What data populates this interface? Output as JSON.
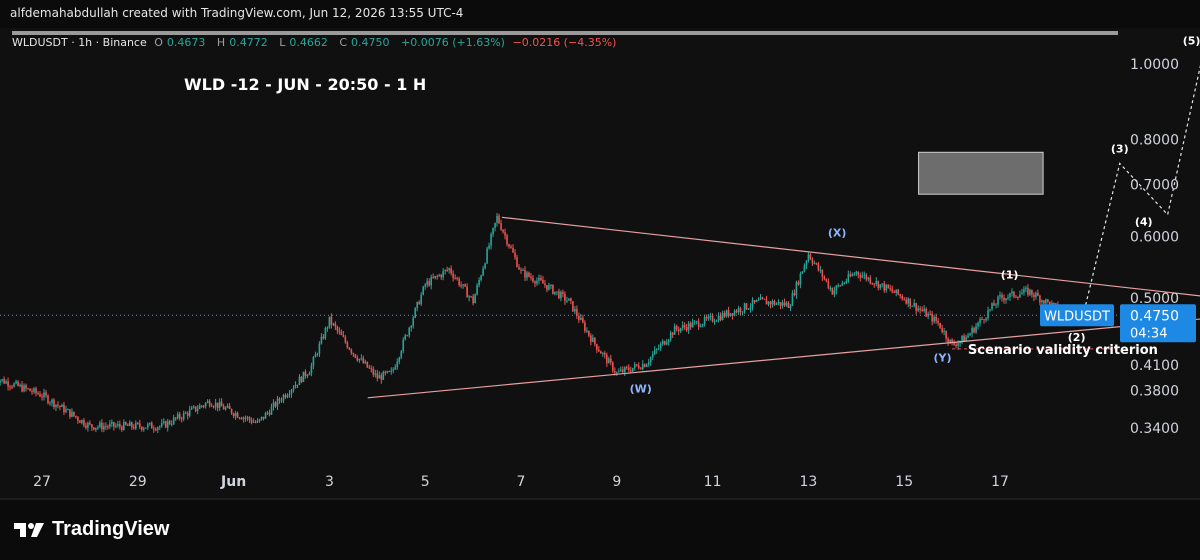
{
  "credit": "alfdemahabdullah created with TradingView.com, Jun 12, 2026 13:55 UTC-4",
  "legend": {
    "symbol": "WLDUSDT · 1h · Binance",
    "o_label": "O",
    "o_value": "0.4673",
    "h_label": "H",
    "h_value": "0.4772",
    "l_label": "L",
    "l_value": "0.4662",
    "c_label": "C",
    "c_value": "0.4750",
    "change": "+0.0076 (+1.63%)",
    "extra_change": "−0.0216 (−4.35%)"
  },
  "brand": {
    "name": "TradingView"
  },
  "icons": [
    "tradingview-logo-icon"
  ],
  "colors": {
    "up": "#26a69a",
    "down": "#ef5350",
    "trendline": "#e8a0a0",
    "wave_label": "#ffffff",
    "wxy_label": "#8fb4ff",
    "price_tag": "#1e88e5",
    "target_box": "#8c8c8c"
  },
  "chart_data": {
    "type": "candlestick",
    "title": "WLD -12 - JUN - 20:50 - 1 H",
    "symbol": "WLDUSDT",
    "interval": "1h",
    "exchange": "Binance",
    "y_scale": "log",
    "y_ticks": [
      "1.0000",
      "0.8000",
      "0.7000",
      "0.6000",
      "0.5000",
      "0.4100",
      "0.3800",
      "0.3400"
    ],
    "x_ticks": [
      "27",
      "29",
      "Jun",
      "3",
      "5",
      "7",
      "9",
      "11",
      "13",
      "15",
      "17"
    ],
    "last_price": "0.4750",
    "countdown": "04:34",
    "price_label": "WLDUSDT",
    "approx_close_path": [
      {
        "day": 26.0,
        "price": 0.395
      },
      {
        "day": 27.0,
        "price": 0.375
      },
      {
        "day": 28.0,
        "price": 0.342
      },
      {
        "day": 29.5,
        "price": 0.342
      },
      {
        "day": 30.5,
        "price": 0.368
      },
      {
        "day": 31.5,
        "price": 0.345
      },
      {
        "day": 32.0,
        "price": 0.372
      },
      {
        "day": 32.6,
        "price": 0.405
      },
      {
        "day": 33.0,
        "price": 0.468
      },
      {
        "day": 33.5,
        "price": 0.425
      },
      {
        "day": 34.0,
        "price": 0.395
      },
      {
        "day": 34.3,
        "price": 0.4
      },
      {
        "day": 35.0,
        "price": 0.52
      },
      {
        "day": 35.5,
        "price": 0.545
      },
      {
        "day": 36.0,
        "price": 0.495
      },
      {
        "day": 36.5,
        "price": 0.635
      },
      {
        "day": 37.0,
        "price": 0.54
      },
      {
        "day": 37.5,
        "price": 0.52
      },
      {
        "day": 38.0,
        "price": 0.495
      },
      {
        "day": 38.5,
        "price": 0.44
      },
      {
        "day": 39.0,
        "price": 0.4
      },
      {
        "day": 39.6,
        "price": 0.412
      },
      {
        "day": 40.2,
        "price": 0.455
      },
      {
        "day": 41.0,
        "price": 0.47
      },
      {
        "day": 42.0,
        "price": 0.495
      },
      {
        "day": 42.6,
        "price": 0.49
      },
      {
        "day": 43.0,
        "price": 0.57
      },
      {
        "day": 43.5,
        "price": 0.51
      },
      {
        "day": 44.0,
        "price": 0.54
      },
      {
        "day": 45.0,
        "price": 0.5
      },
      {
        "day": 45.7,
        "price": 0.465
      },
      {
        "day": 46.0,
        "price": 0.435
      },
      {
        "day": 46.3,
        "price": 0.445
      },
      {
        "day": 47.0,
        "price": 0.5
      },
      {
        "day": 47.6,
        "price": 0.51
      },
      {
        "day": 48.3,
        "price": 0.48
      },
      {
        "day": 48.7,
        "price": 0.475
      }
    ],
    "trendlines": [
      {
        "name": "upper",
        "from": {
          "day": 36.6,
          "price": 0.635
        },
        "to": {
          "day": 52.2,
          "price": 0.495
        }
      },
      {
        "name": "lower",
        "from": {
          "day": 33.8,
          "price": 0.372
        },
        "to": {
          "day": 52.0,
          "price": 0.475
        }
      }
    ],
    "validity_level": 0.43,
    "target_zone": {
      "day_from": 45.3,
      "day_to": 47.9,
      "price_low": 0.68,
      "price_high": 0.77
    },
    "projection": [
      {
        "day": 48.7,
        "price": 0.465
      },
      {
        "day": 49.5,
        "price": 0.745
      },
      {
        "day": 50.5,
        "price": 0.64
      },
      {
        "day": 51.2,
        "price": 1.005
      }
    ],
    "wave_labels": [
      {
        "text": "(W)",
        "day": 39.5,
        "price": 0.378
      },
      {
        "text": "(X)",
        "day": 43.6,
        "price": 0.6
      },
      {
        "text": "(Y)",
        "day": 45.8,
        "price": 0.414
      },
      {
        "text": "(1)",
        "day": 47.2,
        "price": 0.53
      },
      {
        "text": "(2)",
        "day": 48.6,
        "price": 0.44
      },
      {
        "text": "(3)",
        "day": 49.5,
        "price": 0.77
      },
      {
        "text": "(4)",
        "day": 50.0,
        "price": 0.62
      },
      {
        "text": "(5)",
        "day": 51.0,
        "price": 1.06
      }
    ],
    "annotations": [
      {
        "text": "Scenario validity criterion",
        "day": 48.0,
        "price": 0.43
      }
    ]
  }
}
